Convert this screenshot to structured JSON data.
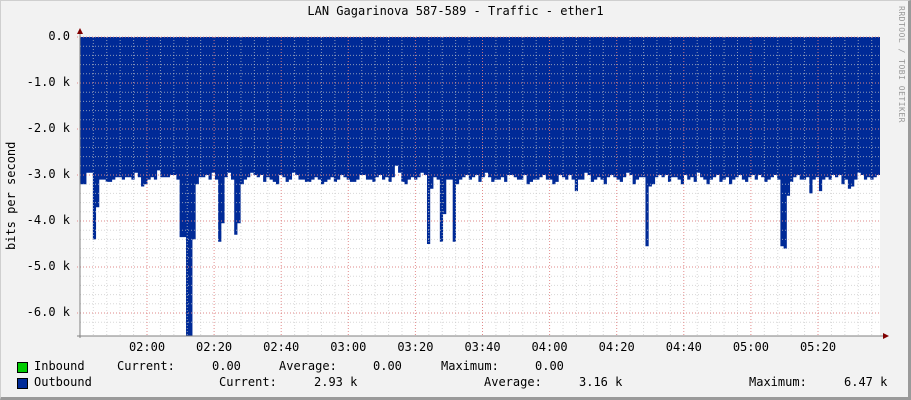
{
  "title": "LAN Gagarinova 587-589 - Traffic - ether1",
  "watermark": "RRDTOOL / TOBI OETIKER",
  "y_axis_label": "bits per second",
  "colors": {
    "background": "#f2f2f2",
    "plot_bg": "#ffffff",
    "outbound": "#002a97",
    "inbound": "#00cc00",
    "major_grid": "#e08080",
    "minor_grid": "#c8c8c8",
    "axis": "#808080",
    "arrow": "#800000"
  },
  "legend": {
    "inbound": {
      "label": "Inbound",
      "current_label": "Current:",
      "current": "0.00",
      "average_label": "Average:",
      "average": "0.00",
      "maximum_label": "Maximum:",
      "maximum": "0.00"
    },
    "outbound": {
      "label": "Outbound",
      "current_label": "Current:",
      "current": "2.93 k",
      "average_label": "Average:",
      "average": "3.16 k",
      "maximum_label": "Maximum:",
      "maximum": "6.47 k"
    }
  },
  "chart_data": {
    "type": "area",
    "title": "LAN Gagarinova 587-589 - Traffic - ether1",
    "xlabel": "",
    "ylabel": "bits per second",
    "ylim": [
      -6.5,
      0
    ],
    "y_unit": "k",
    "y_ticks": [
      "0.0",
      "-1.0 k",
      "-2.0 k",
      "-3.0 k",
      "-4.0 k",
      "-5.0 k",
      "-6.0 k"
    ],
    "x_ticks": [
      "02:00",
      "02:20",
      "02:40",
      "03:00",
      "03:20",
      "03:40",
      "04:00",
      "04:20",
      "04:40",
      "05:00",
      "05:20"
    ],
    "grid": true,
    "legend_position": "bottom",
    "series": [
      {
        "name": "Inbound",
        "color": "#00cc00",
        "current": 0.0,
        "average": 0.0,
        "maximum": 0.0,
        "values": []
      },
      {
        "name": "Outbound",
        "color": "#002a97",
        "current": 2.93,
        "average": 3.16,
        "maximum": 6.47,
        "note": "plotted as negative (downward) area, values in k bits/s, approx samples every ~1 min",
        "x_start": "01:41",
        "x_end": "05:40",
        "values": [
          -3.2,
          -3.2,
          -2.95,
          -2.95,
          -4.4,
          -3.7,
          -3.1,
          -3.1,
          -3.15,
          -3.15,
          -3.1,
          -3.05,
          -3.05,
          -3.1,
          -3.05,
          -3.05,
          -3.1,
          -2.95,
          -3.05,
          -3.25,
          -3.2,
          -3.1,
          -3.05,
          -3.1,
          -2.9,
          -3.05,
          -3.05,
          -3.05,
          -3.0,
          -3.0,
          -3.1,
          -4.35,
          -4.35,
          -6.5,
          -6.5,
          -4.4,
          -3.2,
          -3.05,
          -3.05,
          -3.0,
          -3.1,
          -2.95,
          -3.1,
          -4.45,
          -4.05,
          -3.05,
          -2.95,
          -3.1,
          -4.3,
          -4.05,
          -3.2,
          -3.1,
          -3.05,
          -2.95,
          -3.0,
          -3.05,
          -3.0,
          -3.15,
          -3.05,
          -3.1,
          -3.15,
          -3.2,
          -3.0,
          -3.05,
          -3.15,
          -3.1,
          -2.95,
          -3.0,
          -3.1,
          -3.1,
          -3.15,
          -3.15,
          -3.1,
          -3.05,
          -3.1,
          -3.2,
          -3.15,
          -3.1,
          -3.05,
          -3.15,
          -3.1,
          -3.0,
          -3.05,
          -3.1,
          -3.15,
          -3.15,
          -3.1,
          -3.0,
          -3.0,
          -3.1,
          -3.1,
          -3.15,
          -3.05,
          -3.0,
          -3.1,
          -3.05,
          -3.15,
          -3.05,
          -2.8,
          -2.95,
          -3.15,
          -3.2,
          -3.1,
          -3.05,
          -3.1,
          -3.05,
          -2.95,
          -3.0,
          -4.5,
          -3.3,
          -3.05,
          -3.1,
          -4.45,
          -3.85,
          -3.1,
          -3.1,
          -4.45,
          -3.2,
          -3.1,
          -3.05,
          -3.0,
          -3.1,
          -3.05,
          -3.0,
          -3.15,
          -3.05,
          -2.95,
          -3.05,
          -3.15,
          -3.1,
          -3.1,
          -3.05,
          -3.15,
          -3.0,
          -3.0,
          -3.05,
          -3.1,
          -3.1,
          -3.0,
          -3.2,
          -3.15,
          -3.1,
          -3.1,
          -3.05,
          -3.0,
          -3.1,
          -3.1,
          -3.2,
          -3.15,
          -3.0,
          -3.05,
          -3.1,
          -3.0,
          -3.1,
          -3.35,
          -3.1,
          -3.1,
          -2.95,
          -3.0,
          -3.15,
          -3.1,
          -3.05,
          -3.1,
          -3.2,
          -3.05,
          -3.0,
          -3.05,
          -3.1,
          -3.15,
          -3.05,
          -2.95,
          -3.0,
          -3.2,
          -3.1,
          -3.05,
          -3.05,
          -4.55,
          -3.25,
          -3.2,
          -3.05,
          -3.0,
          -3.05,
          -3.0,
          -3.15,
          -3.05,
          -3.05,
          -3.1,
          -3.2,
          -3.0,
          -3.1,
          -3.05,
          -3.15,
          -2.95,
          -3.05,
          -3.1,
          -3.2,
          -3.1,
          -3.05,
          -3.0,
          -3.15,
          -3.1,
          -3.05,
          -3.2,
          -3.1,
          -3.05,
          -3.0,
          -3.1,
          -3.15,
          -3.05,
          -3.0,
          -3.1,
          -3.0,
          -3.05,
          -3.15,
          -3.1,
          -3.05,
          -3.0,
          -3.1,
          -4.55,
          -4.6,
          -3.45,
          -3.15,
          -3.05,
          -3.0,
          -3.1,
          -3.1,
          -3.05,
          -3.4,
          -3.1,
          -3.05,
          -3.35,
          -3.1,
          -3.05,
          -3.1,
          -3.0,
          -3.05,
          -3.0,
          -3.2,
          -3.1,
          -3.3,
          -3.25,
          -3.1,
          -2.95,
          -3.0,
          -3.1,
          -3.05,
          -3.1,
          -3.05,
          -3.0
        ]
      }
    ]
  }
}
